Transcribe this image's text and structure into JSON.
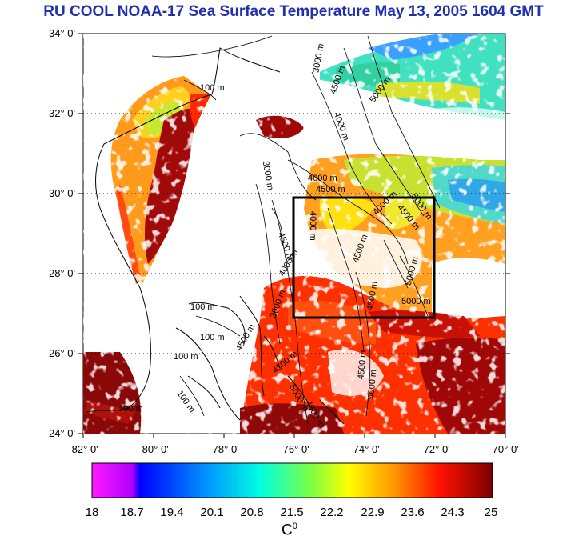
{
  "title": "RU COOL  NOAA-17 Sea Surface Temperature May 13, 2005 1604 GMT",
  "map": {
    "lon_range": [
      -82,
      -70
    ],
    "lat_range": [
      24,
      34
    ],
    "x_ticks": [
      "-82° 0'",
      "-80° 0'",
      "-78° 0'",
      "-76° 0'",
      "-74° 0'",
      "-72° 0'",
      "-70° 0'"
    ],
    "y_ticks": [
      "34° 0'",
      "32° 0'",
      "30° 0'",
      "28° 0'",
      "26° 0'",
      "24° 0'"
    ],
    "grid": "dotted",
    "box": {
      "lon": [
        -76,
        -72
      ],
      "lat": [
        27,
        30
      ]
    },
    "contour_labels": [
      "100 m",
      "100 m",
      "100 m",
      "100 m",
      "100 m",
      "100 m",
      "3000 m",
      "3000 m",
      "4000 m",
      "4000 m",
      "4500 m",
      "4500 m",
      "5000 m",
      "4000 m",
      "4500 m",
      "5000 m",
      "4000 m",
      "4500 m",
      "4500 m",
      "5000 m",
      "5000 m",
      "4500 m",
      "4000 m",
      "3000 m",
      "4500 m",
      "4000 m",
      "4500 m",
      "5000 m",
      "4000 m",
      "4500 m"
    ]
  },
  "colorbar": {
    "labels": [
      "18",
      "18.7",
      "19.4",
      "20.1",
      "20.8",
      "21.5",
      "22.2",
      "22.9",
      "23.6",
      "24.3",
      "25"
    ],
    "unit": "C",
    "unit_sup": "0",
    "colors": [
      "#ff1aff",
      "#0000ff",
      "#00ffff",
      "#ffff00",
      "#ff0000",
      "#800000"
    ]
  }
}
